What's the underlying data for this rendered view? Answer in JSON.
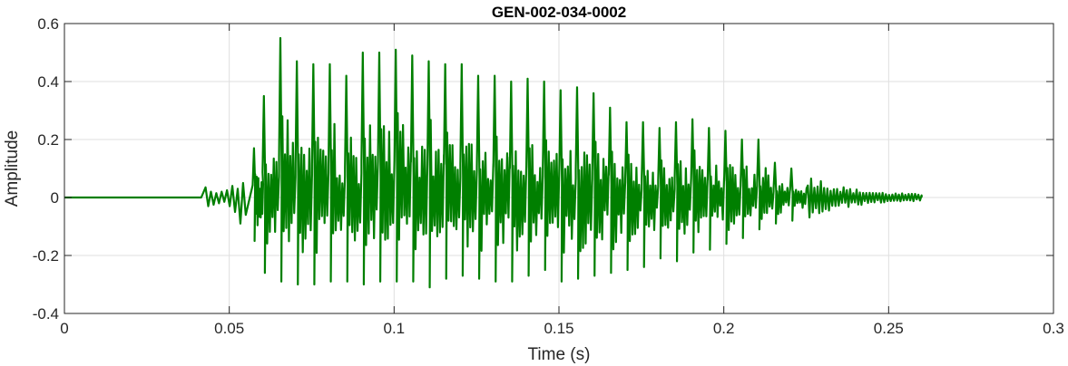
{
  "chart_data": {
    "type": "line",
    "title": "GEN-002-034-0002",
    "xlabel": "Time (s)",
    "ylabel": "Amplitude",
    "xlim": [
      0,
      0.3
    ],
    "ylim": [
      -0.4,
      0.6
    ],
    "x_ticks": [
      0,
      0.05,
      0.1,
      0.15,
      0.2,
      0.25,
      0.3
    ],
    "x_tick_labels": [
      "0",
      "0.05",
      "0.1",
      "0.15",
      "0.2",
      "0.25",
      "0.3"
    ],
    "y_ticks": [
      -0.4,
      -0.2,
      0,
      0.2,
      0.4,
      0.6
    ],
    "y_tick_labels": [
      "-0.4",
      "-0.2",
      "0",
      "0.2",
      "0.4",
      "0.6"
    ],
    "grid": true,
    "legend": "none",
    "series": [
      {
        "color": "#007f00",
        "signal_start": 0.042,
        "signal_end": 0.26,
        "peak_times": [
          0.0575,
          0.0605,
          0.0655,
          0.0705,
          0.0755,
          0.0805,
          0.0855,
          0.0905,
          0.0955,
          0.1005,
          0.1055,
          0.1105,
          0.1155,
          0.1205,
          0.1255,
          0.1305,
          0.1355,
          0.1405,
          0.1455,
          0.1505,
          0.1555,
          0.1605,
          0.1655,
          0.1705,
          0.1755,
          0.1805,
          0.1855,
          0.1905,
          0.1955,
          0.2005,
          0.2055,
          0.2105,
          0.2155,
          0.2205
        ],
        "peak_values": [
          0.17,
          0.35,
          0.55,
          0.47,
          0.46,
          0.46,
          0.42,
          0.5,
          0.5,
          0.51,
          0.49,
          0.47,
          0.46,
          0.46,
          0.42,
          0.42,
          0.4,
          0.41,
          0.4,
          0.37,
          0.38,
          0.36,
          0.31,
          0.26,
          0.26,
          0.24,
          0.26,
          0.27,
          0.24,
          0.23,
          0.2,
          0.2,
          0.12,
          0.1
        ],
        "trough_values": [
          -0.15,
          -0.26,
          -0.29,
          -0.3,
          -0.3,
          -0.29,
          -0.29,
          -0.3,
          -0.29,
          -0.29,
          -0.29,
          -0.31,
          -0.28,
          -0.27,
          -0.28,
          -0.29,
          -0.29,
          -0.27,
          -0.25,
          -0.29,
          -0.28,
          -0.27,
          -0.26,
          -0.25,
          -0.24,
          -0.21,
          -0.22,
          -0.19,
          -0.18,
          -0.16,
          -0.14,
          -0.11,
          -0.09,
          -0.08
        ]
      }
    ]
  }
}
